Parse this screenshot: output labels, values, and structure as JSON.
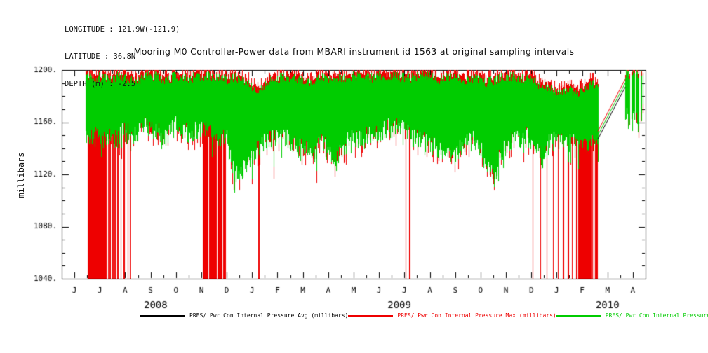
{
  "header": {
    "line1": "LONGITUDE : 121.9W(-121.9)",
    "line2": "LATITUDE : 36.8N",
    "line3": "DEPTH (m) : -2.5"
  },
  "title": "Mooring M0 Controller-Power data from MBARI instrument id 1563 at original sampling intervals",
  "ylabel": "millibars",
  "legend": [
    {
      "label": "PRES/ Pwr Con Internal Pressure Avg (millibars)",
      "color": "#000000"
    },
    {
      "label": "PRES/ Pwr Con Internal Pressure Max (millibars)",
      "color": "#ee0000"
    },
    {
      "label": "PRES/ Pwr Con Internal Pressure Min (millibars)",
      "color": "#00cc00"
    }
  ],
  "chart_data": {
    "type": "line",
    "title": "Mooring M0 Controller-Power data from MBARI instrument id 1563 at original sampling intervals",
    "xlabel": "",
    "ylabel": "millibars",
    "ylim": [
      1040,
      1200
    ],
    "ytick_values": [
      1040,
      1080,
      1120,
      1160,
      1200
    ],
    "ytick_labels": [
      "1040.",
      "1080.",
      "1120.",
      "1160.",
      "1200."
    ],
    "y_minor_step": 10,
    "x_axis": {
      "t_min": -0.5,
      "t_max": 22.5,
      "t_zero_is": "June 2008, months increase by 1 per tick",
      "month_tick_labels": [
        "J",
        "J",
        "A",
        "S",
        "O",
        "N",
        "D",
        "J",
        "F",
        "M",
        "A",
        "M",
        "J",
        "J",
        "A",
        "S",
        "O",
        "N",
        "D",
        "J",
        "F",
        "M",
        "A"
      ],
      "year_labels": [
        {
          "text": "2008",
          "t": 3.2
        },
        {
          "text": "2009",
          "t": 12.8
        },
        {
          "text": "2010",
          "t": 21.0
        }
      ]
    },
    "series": [
      {
        "name": "PRES/ Pwr Con Internal Pressure Avg (millibars)",
        "color": "#000000"
      },
      {
        "name": "PRES/ Pwr Con Internal Pressure Max (millibars)",
        "color": "#ee0000"
      },
      {
        "name": "PRES/ Pwr Con Internal Pressure Min (millibars)",
        "color": "#00cc00"
      }
    ],
    "band_range": [
      0.44,
      20.62
    ],
    "band_envelope": [
      [
        0.44,
        1196,
        1154
      ],
      [
        0.8,
        1194,
        1150
      ],
      [
        1.1,
        1195,
        1148
      ],
      [
        1.4,
        1193,
        1150
      ],
      [
        1.7,
        1195,
        1147
      ],
      [
        2.0,
        1194,
        1156
      ],
      [
        2.4,
        1191,
        1150
      ],
      [
        2.8,
        1196,
        1160
      ],
      [
        3.2,
        1195,
        1154
      ],
      [
        3.6,
        1192,
        1150
      ],
      [
        4.0,
        1196,
        1158
      ],
      [
        4.5,
        1194,
        1152
      ],
      [
        5.0,
        1196,
        1155
      ],
      [
        5.5,
        1195,
        1150
      ],
      [
        6.0,
        1193,
        1147
      ],
      [
        6.3,
        1195,
        1118
      ],
      [
        6.6,
        1191,
        1125
      ],
      [
        6.9,
        1189,
        1132
      ],
      [
        7.2,
        1183,
        1140
      ],
      [
        7.5,
        1188,
        1146
      ],
      [
        7.8,
        1193,
        1148
      ],
      [
        8.3,
        1195,
        1150
      ],
      [
        8.8,
        1193,
        1142
      ],
      [
        9.3,
        1190,
        1137
      ],
      [
        9.8,
        1195,
        1145
      ],
      [
        10.3,
        1193,
        1131
      ],
      [
        10.8,
        1195,
        1147
      ],
      [
        11.3,
        1196,
        1150
      ],
      [
        11.8,
        1194,
        1152
      ],
      [
        12.3,
        1196,
        1156
      ],
      [
        12.8,
        1195,
        1158
      ],
      [
        13.3,
        1194,
        1150
      ],
      [
        13.8,
        1196,
        1147
      ],
      [
        14.3,
        1193,
        1139
      ],
      [
        14.8,
        1195,
        1134
      ],
      [
        15.3,
        1192,
        1142
      ],
      [
        15.8,
        1194,
        1148
      ],
      [
        16.2,
        1190,
        1129
      ],
      [
        16.5,
        1192,
        1117
      ],
      [
        16.8,
        1194,
        1137
      ],
      [
        17.3,
        1195,
        1147
      ],
      [
        17.8,
        1193,
        1150
      ],
      [
        18.2,
        1190,
        1144
      ],
      [
        18.45,
        1188,
        1131
      ],
      [
        18.7,
        1186,
        1145
      ],
      [
        19.0,
        1182,
        1148
      ],
      [
        19.4,
        1186,
        1146
      ],
      [
        19.8,
        1183,
        1144
      ],
      [
        20.2,
        1188,
        1145
      ],
      [
        20.62,
        1190,
        1147
      ]
    ],
    "cluster_range": [
      21.7,
      22.38
    ],
    "cluster_envelope": [
      [
        21.7,
        1198,
        1167
      ],
      [
        21.9,
        1196,
        1158
      ],
      [
        22.05,
        1198,
        1163
      ],
      [
        22.2,
        1197,
        1159
      ],
      [
        22.38,
        1198,
        1170
      ]
    ],
    "dropout_floor": 1040,
    "dropout_blocks": [
      [
        0.5,
        1.25
      ],
      [
        5.05,
        5.95
      ],
      [
        19.75,
        20.62
      ]
    ],
    "dropout_lines": [
      1.32,
      1.4,
      1.5,
      1.58,
      1.7,
      1.82,
      1.95,
      2.1,
      2.18,
      7.25,
      13.05,
      13.2,
      18.05,
      18.35,
      18.6,
      18.85,
      19.05,
      19.25,
      19.45,
      19.6
    ],
    "gap": [
      20.62,
      21.7
    ],
    "connector": {
      "from": [
        20.62,
        1150
      ],
      "to": [
        21.7,
        1190
      ]
    },
    "noise_seed": 42
  }
}
